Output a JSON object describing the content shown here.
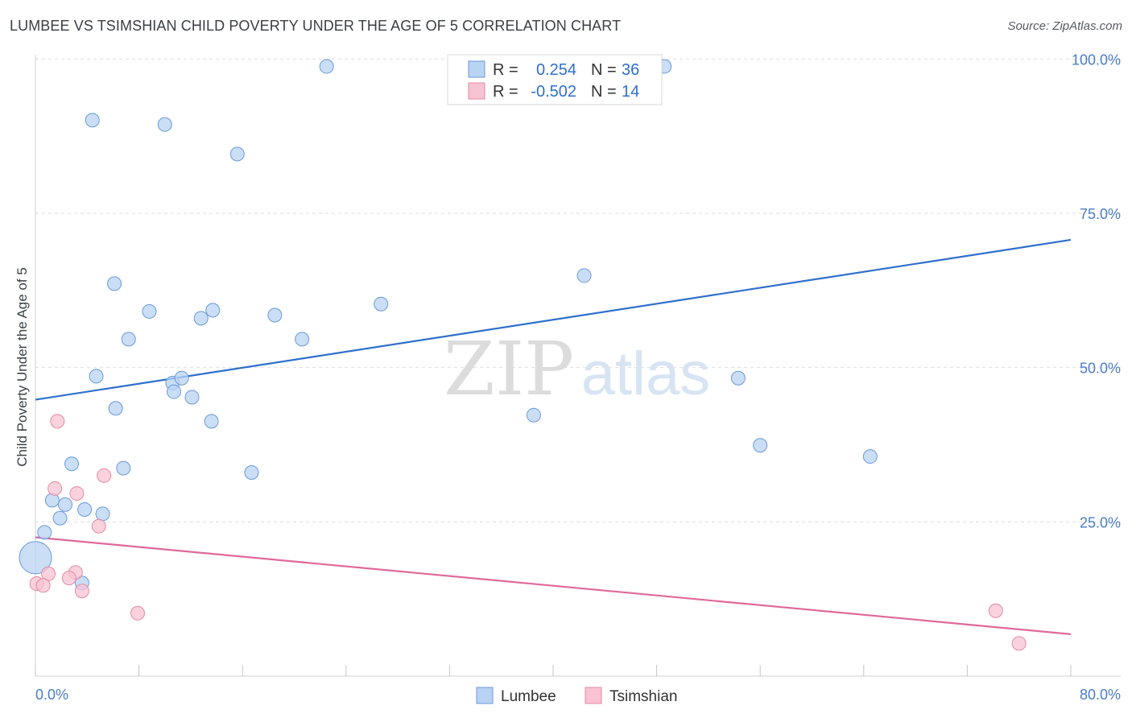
{
  "header": {
    "title": "LUMBEE VS TSIMSHIAN CHILD POVERTY UNDER THE AGE OF 5 CORRELATION CHART",
    "source": "Source: ZipAtlas.com"
  },
  "watermark": {
    "zip": "ZIP",
    "atlas": "atlas"
  },
  "colors": {
    "lumbee_fill": "#b8d3f3",
    "lumbee_stroke": "#6a9ad8",
    "lumbee_line": "#2f6fcc",
    "tsimshian_fill": "#f8c3d3",
    "tsimshian_stroke": "#e38aa6",
    "tsimshian_line": "#e0689a",
    "tick_text": "#4a7cc7",
    "stat_value": "#2f6fcc"
  },
  "stats": [
    {
      "series": "Lumbee",
      "r_label": "R =",
      "r_value": "0.254",
      "n_label": "N =",
      "n_value": "36"
    },
    {
      "series": "Tsimshian",
      "r_label": "R =",
      "r_value": "-0.502",
      "n_label": "N =",
      "n_value": "14"
    }
  ],
  "chart_data": {
    "type": "scatter",
    "title": "LUMBEE VS TSIMSHIAN CHILD POVERTY UNDER THE AGE OF 5 CORRELATION CHART",
    "xlabel": "",
    "ylabel": "Child Poverty Under the Age of 5",
    "xlim": [
      0,
      80
    ],
    "ylim": [
      0,
      102
    ],
    "x_tick_labels": [
      {
        "value": 0,
        "label": "0.0%"
      },
      {
        "value": 80,
        "label": "80.0%"
      }
    ],
    "y_tick_labels": [
      {
        "value": 25,
        "label": "25.0%"
      },
      {
        "value": 50,
        "label": "50.0%"
      },
      {
        "value": 75,
        "label": "75.0%"
      },
      {
        "value": 100,
        "label": "100.0%"
      }
    ],
    "grid": true,
    "legend_position": "bottom-center",
    "series": [
      {
        "name": "Lumbee",
        "r": 0.254,
        "n": 36,
        "trend": {
          "x": [
            0,
            80
          ],
          "y": [
            44.8,
            70.7
          ]
        },
        "points": [
          {
            "x": 22.5,
            "y": 98.8
          },
          {
            "x": 48.6,
            "y": 98.8
          },
          {
            "x": 4.4,
            "y": 90.1
          },
          {
            "x": 10.0,
            "y": 89.4
          },
          {
            "x": 15.6,
            "y": 84.6
          },
          {
            "x": 42.4,
            "y": 64.9
          },
          {
            "x": 6.1,
            "y": 63.6
          },
          {
            "x": 8.8,
            "y": 59.1
          },
          {
            "x": 13.7,
            "y": 59.3
          },
          {
            "x": 12.8,
            "y": 58.0
          },
          {
            "x": 18.5,
            "y": 58.5
          },
          {
            "x": 26.7,
            "y": 60.3
          },
          {
            "x": 7.2,
            "y": 54.6
          },
          {
            "x": 20.6,
            "y": 54.6
          },
          {
            "x": 4.7,
            "y": 48.6
          },
          {
            "x": 10.6,
            "y": 47.5
          },
          {
            "x": 11.3,
            "y": 48.3
          },
          {
            "x": 10.7,
            "y": 46.1
          },
          {
            "x": 12.1,
            "y": 45.2
          },
          {
            "x": 54.3,
            "y": 48.3
          },
          {
            "x": 6.2,
            "y": 43.4
          },
          {
            "x": 13.6,
            "y": 41.3
          },
          {
            "x": 38.5,
            "y": 42.3
          },
          {
            "x": 56.0,
            "y": 37.4
          },
          {
            "x": 64.5,
            "y": 35.6
          },
          {
            "x": 2.8,
            "y": 34.4
          },
          {
            "x": 6.8,
            "y": 33.7
          },
          {
            "x": 16.7,
            "y": 33.0
          },
          {
            "x": 1.3,
            "y": 28.5
          },
          {
            "x": 2.3,
            "y": 27.8
          },
          {
            "x": 3.8,
            "y": 27.0
          },
          {
            "x": 5.2,
            "y": 26.3
          },
          {
            "x": 1.9,
            "y": 25.6
          },
          {
            "x": 0.7,
            "y": 23.3
          },
          {
            "x": 0.0,
            "y": 19.2,
            "large": true
          },
          {
            "x": 3.6,
            "y": 15.1
          }
        ]
      },
      {
        "name": "Tsimshian",
        "r": -0.502,
        "n": 14,
        "trend": {
          "x": [
            0,
            80
          ],
          "y": [
            22.5,
            6.8
          ]
        },
        "points": [
          {
            "x": 1.7,
            "y": 41.3
          },
          {
            "x": 1.5,
            "y": 30.4
          },
          {
            "x": 3.2,
            "y": 29.6
          },
          {
            "x": 5.3,
            "y": 32.5
          },
          {
            "x": 4.9,
            "y": 24.3
          },
          {
            "x": 1.0,
            "y": 16.6
          },
          {
            "x": 3.1,
            "y": 16.8
          },
          {
            "x": 2.6,
            "y": 15.9
          },
          {
            "x": 0.1,
            "y": 15.0
          },
          {
            "x": 0.6,
            "y": 14.7
          },
          {
            "x": 3.6,
            "y": 13.8
          },
          {
            "x": 7.9,
            "y": 10.2
          },
          {
            "x": 74.2,
            "y": 10.6
          },
          {
            "x": 76.0,
            "y": 5.3
          }
        ]
      }
    ]
  }
}
